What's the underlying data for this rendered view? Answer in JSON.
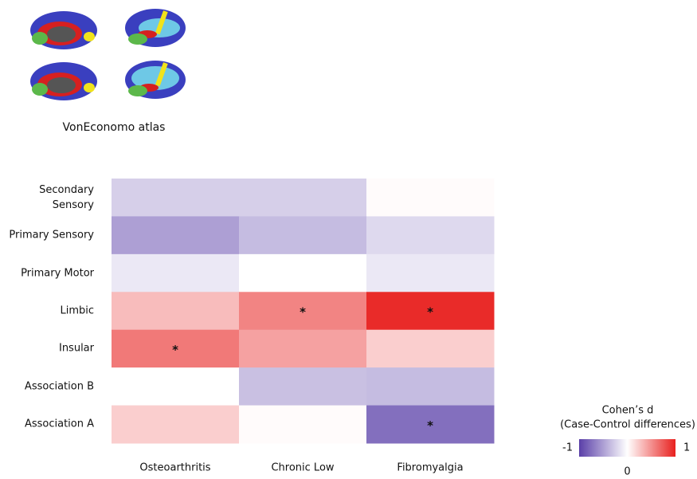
{
  "chart_data": {
    "type": "heatmap",
    "subtitle": "VonEconomo atlas",
    "x_categories": [
      "Osteoarthritis",
      "Chronic Low",
      "Fibromyalgia"
    ],
    "y_categories": [
      "Secondary\nSensory",
      "Primary Sensory",
      "Primary Motor",
      "Limbic",
      "Insular",
      "Association B",
      "Association A"
    ],
    "values": [
      [
        -0.25,
        -0.25,
        0.02
      ],
      [
        -0.5,
        -0.35,
        -0.2
      ],
      [
        -0.12,
        0.0,
        -0.12
      ],
      [
        0.3,
        0.55,
        0.95
      ],
      [
        0.6,
        0.42,
        0.22
      ],
      [
        0.0,
        -0.33,
        -0.35
      ],
      [
        0.22,
        0.02,
        -0.75
      ]
    ],
    "significance": [
      [
        null,
        null,
        null
      ],
      [
        null,
        null,
        null
      ],
      [
        null,
        null,
        null
      ],
      [
        null,
        "*",
        "*"
      ],
      [
        "*",
        null,
        null
      ],
      [
        null,
        null,
        null
      ],
      [
        null,
        null,
        "*"
      ]
    ],
    "colorbar": {
      "title": [
        "Cohen’s d",
        "(Case-Control differences)"
      ],
      "lim": [
        -1,
        1
      ],
      "ticks": [
        -1,
        0,
        1
      ],
      "colors": [
        "#5a3fa8",
        "#ffffff",
        "#e8201e"
      ]
    }
  }
}
